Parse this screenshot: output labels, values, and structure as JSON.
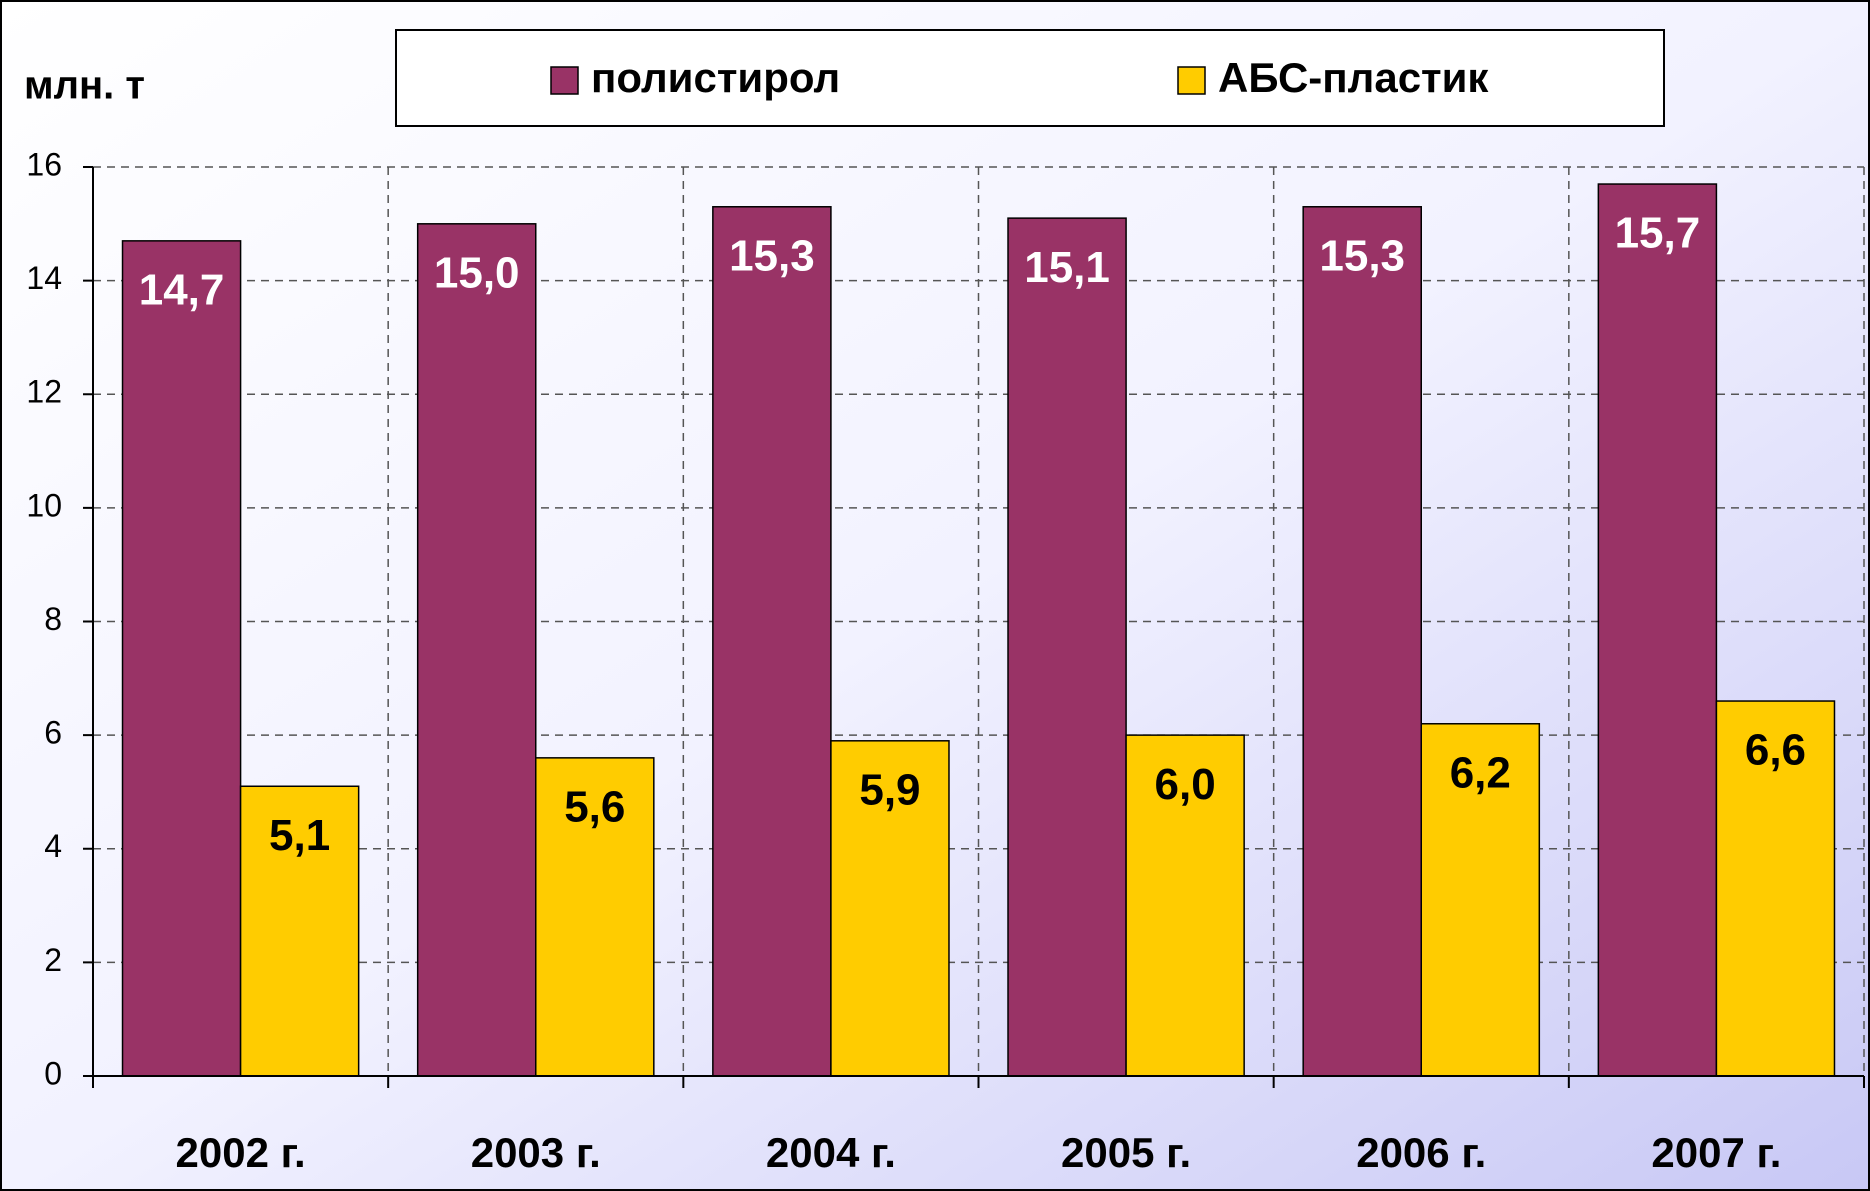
{
  "chart_data": {
    "type": "bar",
    "y_label": "млн. т",
    "categories": [
      "2002 г.",
      "2003 г.",
      "2004 г.",
      "2005 г.",
      "2006 г.",
      "2007 г."
    ],
    "series": [
      {
        "name": "полистирол",
        "color": "#993366",
        "values": [
          14.7,
          15.0,
          15.3,
          15.1,
          15.3,
          15.7
        ],
        "value_labels": [
          "14,7",
          "15,0",
          "15,3",
          "15,1",
          "15,3",
          "15,7"
        ]
      },
      {
        "name": "АБС-пластик",
        "color": "#ffcc00",
        "values": [
          5.1,
          5.6,
          5.9,
          6.0,
          6.2,
          6.6
        ],
        "value_labels": [
          "5,1",
          "5,6",
          "5,9",
          "6,0",
          "6,2",
          "6,6"
        ]
      }
    ],
    "ylim": [
      0,
      16
    ],
    "yticks": [
      0,
      2,
      4,
      6,
      8,
      10,
      12,
      14,
      16
    ],
    "grid": true,
    "legend": "top"
  }
}
